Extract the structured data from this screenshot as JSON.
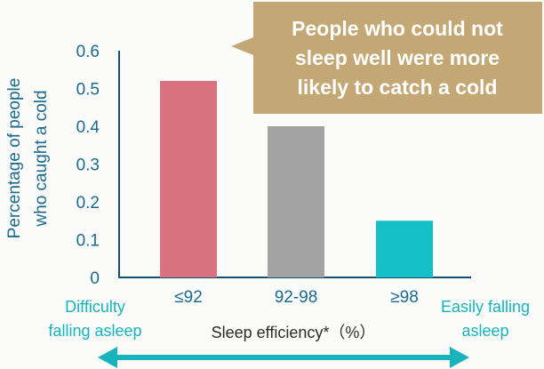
{
  "chart_data": {
    "type": "bar",
    "categories": [
      "≤92",
      "92-98",
      "≥98"
    ],
    "values": [
      0.52,
      0.4,
      0.15
    ],
    "colors": [
      "#d9727f",
      "#a3a3a3",
      "#15bfc6"
    ],
    "ylim": [
      0,
      0.6
    ],
    "yticks": [
      "0",
      "0.1",
      "0.2",
      "0.3",
      "0.4",
      "0.5",
      "0.6"
    ],
    "ylabel_line1": "Percentage of people",
    "ylabel_line2": "who caught a cold",
    "xlabel": "Sleep efficiency*（%）",
    "grid": false
  },
  "callout": {
    "lines": [
      "People who could not",
      "sleep well were more",
      "likely to catch a cold"
    ],
    "color": "#c3a875"
  },
  "scale": {
    "left_lines": [
      "Difficulty",
      "falling asleep"
    ],
    "right_lines": [
      "Easily falling",
      "asleep"
    ],
    "color": "#18b3bd"
  },
  "colors": {
    "text": "#1b6a8f",
    "axis": "#1b4f72"
  }
}
